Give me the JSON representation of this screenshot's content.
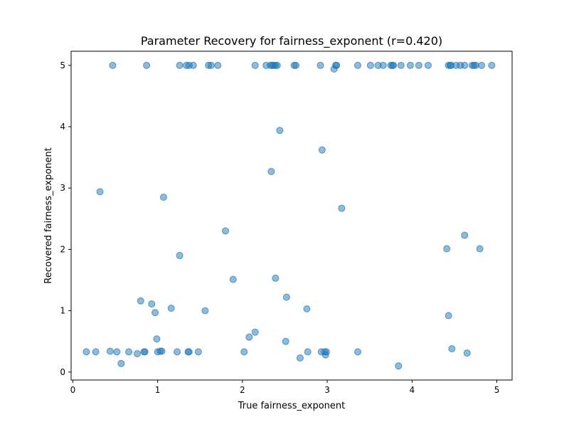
{
  "chart_data": {
    "type": "scatter",
    "title": "Parameter Recovery for fairness_exponent (r=0.420)",
    "xlabel": "True fairness_exponent",
    "ylabel": "Recovered fairness_exponent",
    "xlim": [
      -0.02,
      5.18
    ],
    "ylim": [
      -0.13,
      5.23
    ],
    "xticks": [
      0,
      1,
      2,
      3,
      4,
      5
    ],
    "yticks": [
      0,
      1,
      2,
      3,
      4,
      5
    ],
    "grid": false,
    "legend": "none",
    "marker_color": "#1f77b4",
    "marker_alpha": 0.5,
    "points": [
      [
        0.47,
        5.0
      ],
      [
        0.87,
        5.0
      ],
      [
        1.26,
        5.0
      ],
      [
        1.34,
        5.0
      ],
      [
        1.37,
        5.0
      ],
      [
        1.42,
        5.0
      ],
      [
        1.6,
        5.0
      ],
      [
        1.63,
        5.0
      ],
      [
        1.71,
        5.0
      ],
      [
        2.15,
        5.0
      ],
      [
        2.28,
        5.0
      ],
      [
        2.33,
        5.0
      ],
      [
        2.35,
        5.0
      ],
      [
        2.37,
        5.0
      ],
      [
        2.39,
        5.0
      ],
      [
        2.41,
        5.0
      ],
      [
        2.61,
        5.0
      ],
      [
        2.63,
        5.0
      ],
      [
        2.92,
        5.0
      ],
      [
        3.1,
        5.0
      ],
      [
        3.11,
        5.0
      ],
      [
        3.08,
        4.94
      ],
      [
        3.36,
        5.0
      ],
      [
        3.51,
        5.0
      ],
      [
        3.6,
        5.0
      ],
      [
        3.66,
        5.0
      ],
      [
        3.75,
        5.0
      ],
      [
        3.77,
        5.0
      ],
      [
        3.78,
        5.0
      ],
      [
        3.87,
        5.0
      ],
      [
        3.98,
        5.0
      ],
      [
        4.08,
        5.0
      ],
      [
        4.19,
        5.0
      ],
      [
        4.43,
        5.0
      ],
      [
        4.45,
        5.0
      ],
      [
        4.46,
        5.0
      ],
      [
        4.52,
        5.0
      ],
      [
        4.57,
        5.0
      ],
      [
        4.62,
        5.0
      ],
      [
        4.71,
        5.0
      ],
      [
        4.73,
        5.0
      ],
      [
        4.75,
        5.0
      ],
      [
        4.82,
        5.0
      ],
      [
        4.94,
        5.0
      ],
      [
        2.44,
        3.94
      ],
      [
        2.94,
        3.62
      ],
      [
        2.34,
        3.27
      ],
      [
        0.32,
        2.94
      ],
      [
        1.07,
        2.85
      ],
      [
        3.17,
        2.67
      ],
      [
        1.8,
        2.3
      ],
      [
        4.62,
        2.23
      ],
      [
        4.41,
        2.01
      ],
      [
        4.8,
        2.01
      ],
      [
        1.26,
        1.9
      ],
      [
        1.89,
        1.51
      ],
      [
        2.39,
        1.53
      ],
      [
        2.52,
        1.22
      ],
      [
        0.8,
        1.16
      ],
      [
        0.93,
        1.11
      ],
      [
        1.16,
        1.04
      ],
      [
        0.97,
        0.97
      ],
      [
        1.56,
        1.0
      ],
      [
        2.76,
        1.03
      ],
      [
        4.43,
        0.92
      ],
      [
        2.15,
        0.65
      ],
      [
        2.08,
        0.57
      ],
      [
        0.99,
        0.54
      ],
      [
        2.51,
        0.5
      ],
      [
        4.47,
        0.38
      ],
      [
        4.65,
        0.31
      ],
      [
        0.16,
        0.33
      ],
      [
        0.27,
        0.33
      ],
      [
        0.44,
        0.34
      ],
      [
        0.52,
        0.33
      ],
      [
        0.66,
        0.33
      ],
      [
        0.76,
        0.3
      ],
      [
        0.84,
        0.33
      ],
      [
        0.85,
        0.33
      ],
      [
        1.0,
        0.33
      ],
      [
        1.03,
        0.34
      ],
      [
        1.05,
        0.34
      ],
      [
        1.23,
        0.33
      ],
      [
        1.36,
        0.33
      ],
      [
        1.37,
        0.33
      ],
      [
        1.48,
        0.33
      ],
      [
        2.02,
        0.33
      ],
      [
        2.77,
        0.33
      ],
      [
        2.93,
        0.33
      ],
      [
        2.97,
        0.33
      ],
      [
        2.98,
        0.28
      ],
      [
        2.99,
        0.33
      ],
      [
        3.36,
        0.33
      ],
      [
        0.57,
        0.14
      ],
      [
        2.68,
        0.23
      ],
      [
        3.84,
        0.1
      ]
    ]
  }
}
